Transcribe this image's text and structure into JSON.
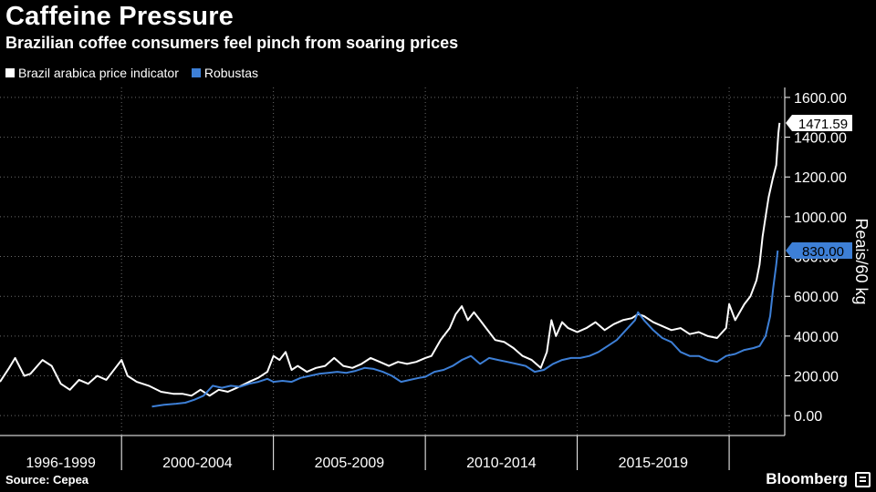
{
  "header": {
    "title": "Caffeine Pressure",
    "subtitle": "Brazilian coffee consumers feel pinch from soaring prices"
  },
  "footer": {
    "source": "Source: Cepea",
    "brand": "Bloomberg",
    "brand_icon": "bloomberg-logo-icon"
  },
  "chart_data": {
    "type": "line",
    "xlim": [
      1996,
      2021.83
    ],
    "ylim": [
      -100,
      1650
    ],
    "ylabel": "Reais/60 kg",
    "y_ticks": [
      0,
      200,
      400,
      600,
      800,
      1000,
      1200,
      1400,
      1600
    ],
    "y_tick_labels": [
      "0.00",
      "200.00",
      "400.00",
      "600.00",
      "800.00",
      "1000.00",
      "1200.00",
      "1400.00",
      "1600.00"
    ],
    "x_groups": [
      {
        "label": "1996-1999",
        "start": 1996,
        "end": 2000
      },
      {
        "label": "2000-2004",
        "start": 2000,
        "end": 2005
      },
      {
        "label": "2005-2009",
        "start": 2005,
        "end": 2010
      },
      {
        "label": "2010-2014",
        "start": 2010,
        "end": 2015
      },
      {
        "label": "2015-2019",
        "start": 2015,
        "end": 2020
      },
      {
        "label": "",
        "start": 2020,
        "end": 2021.83
      }
    ],
    "grid": true,
    "series": [
      {
        "name": "Brazil arabica price indicator",
        "color": "#ffffff",
        "last_label": "1471.59",
        "points": [
          [
            1996.0,
            170
          ],
          [
            1996.3,
            240
          ],
          [
            1996.5,
            290
          ],
          [
            1996.8,
            200
          ],
          [
            1997.0,
            210
          ],
          [
            1997.4,
            280
          ],
          [
            1997.7,
            250
          ],
          [
            1998.0,
            160
          ],
          [
            1998.3,
            130
          ],
          [
            1998.6,
            180
          ],
          [
            1998.9,
            160
          ],
          [
            1999.2,
            200
          ],
          [
            1999.5,
            180
          ],
          [
            1999.8,
            240
          ],
          [
            2000.0,
            280
          ],
          [
            2000.2,
            200
          ],
          [
            2000.5,
            170
          ],
          [
            2000.9,
            150
          ],
          [
            2001.3,
            120
          ],
          [
            2001.7,
            110
          ],
          [
            2002.0,
            110
          ],
          [
            2002.3,
            100
          ],
          [
            2002.6,
            130
          ],
          [
            2002.9,
            100
          ],
          [
            2003.2,
            130
          ],
          [
            2003.5,
            120
          ],
          [
            2003.8,
            140
          ],
          [
            2004.2,
            170
          ],
          [
            2004.5,
            190
          ],
          [
            2004.8,
            220
          ],
          [
            2005.0,
            300
          ],
          [
            2005.2,
            280
          ],
          [
            2005.4,
            320
          ],
          [
            2005.6,
            230
          ],
          [
            2005.8,
            250
          ],
          [
            2006.1,
            220
          ],
          [
            2006.4,
            240
          ],
          [
            2006.7,
            250
          ],
          [
            2007.0,
            290
          ],
          [
            2007.3,
            250
          ],
          [
            2007.6,
            240
          ],
          [
            2007.9,
            260
          ],
          [
            2008.2,
            290
          ],
          [
            2008.5,
            270
          ],
          [
            2008.8,
            250
          ],
          [
            2009.1,
            270
          ],
          [
            2009.4,
            260
          ],
          [
            2009.7,
            270
          ],
          [
            2010.0,
            290
          ],
          [
            2010.2,
            300
          ],
          [
            2010.5,
            380
          ],
          [
            2010.8,
            440
          ],
          [
            2011.0,
            510
          ],
          [
            2011.2,
            550
          ],
          [
            2011.4,
            480
          ],
          [
            2011.6,
            520
          ],
          [
            2011.8,
            480
          ],
          [
            2012.0,
            440
          ],
          [
            2012.3,
            380
          ],
          [
            2012.6,
            370
          ],
          [
            2012.9,
            340
          ],
          [
            2013.2,
            300
          ],
          [
            2013.5,
            280
          ],
          [
            2013.8,
            240
          ],
          [
            2014.0,
            320
          ],
          [
            2014.15,
            480
          ],
          [
            2014.3,
            400
          ],
          [
            2014.5,
            470
          ],
          [
            2014.7,
            440
          ],
          [
            2015.0,
            420
          ],
          [
            2015.3,
            440
          ],
          [
            2015.6,
            470
          ],
          [
            2015.9,
            430
          ],
          [
            2016.2,
            460
          ],
          [
            2016.5,
            480
          ],
          [
            2016.8,
            490
          ],
          [
            2017.0,
            510
          ],
          [
            2017.2,
            500
          ],
          [
            2017.5,
            470
          ],
          [
            2017.8,
            450
          ],
          [
            2018.1,
            430
          ],
          [
            2018.4,
            440
          ],
          [
            2018.7,
            410
          ],
          [
            2019.0,
            420
          ],
          [
            2019.3,
            400
          ],
          [
            2019.6,
            390
          ],
          [
            2019.9,
            440
          ],
          [
            2020.0,
            560
          ],
          [
            2020.2,
            480
          ],
          [
            2020.5,
            560
          ],
          [
            2020.7,
            600
          ],
          [
            2020.9,
            680
          ],
          [
            2021.0,
            760
          ],
          [
            2021.1,
            900
          ],
          [
            2021.2,
            1000
          ],
          [
            2021.3,
            1100
          ],
          [
            2021.45,
            1200
          ],
          [
            2021.55,
            1260
          ],
          [
            2021.62,
            1420
          ],
          [
            2021.66,
            1471.59
          ]
        ]
      },
      {
        "name": "Robustas",
        "color": "#3d7fd6",
        "last_label": "830.00",
        "points": [
          [
            2001.0,
            45
          ],
          [
            2001.4,
            55
          ],
          [
            2001.8,
            60
          ],
          [
            2002.1,
            65
          ],
          [
            2002.4,
            80
          ],
          [
            2002.7,
            100
          ],
          [
            2003.0,
            150
          ],
          [
            2003.3,
            140
          ],
          [
            2003.6,
            150
          ],
          [
            2003.9,
            145
          ],
          [
            2004.2,
            160
          ],
          [
            2004.5,
            170
          ],
          [
            2004.8,
            185
          ],
          [
            2005.0,
            170
          ],
          [
            2005.3,
            175
          ],
          [
            2005.6,
            170
          ],
          [
            2005.9,
            190
          ],
          [
            2006.2,
            200
          ],
          [
            2006.5,
            210
          ],
          [
            2006.8,
            215
          ],
          [
            2007.1,
            220
          ],
          [
            2007.4,
            215
          ],
          [
            2007.7,
            225
          ],
          [
            2008.0,
            240
          ],
          [
            2008.3,
            235
          ],
          [
            2008.6,
            220
          ],
          [
            2008.9,
            200
          ],
          [
            2009.2,
            170
          ],
          [
            2009.5,
            180
          ],
          [
            2009.8,
            190
          ],
          [
            2010.0,
            195
          ],
          [
            2010.3,
            220
          ],
          [
            2010.6,
            230
          ],
          [
            2010.9,
            250
          ],
          [
            2011.2,
            280
          ],
          [
            2011.5,
            300
          ],
          [
            2011.8,
            260
          ],
          [
            2012.1,
            290
          ],
          [
            2012.4,
            280
          ],
          [
            2012.7,
            270
          ],
          [
            2013.0,
            260
          ],
          [
            2013.3,
            250
          ],
          [
            2013.6,
            220
          ],
          [
            2013.9,
            230
          ],
          [
            2014.2,
            260
          ],
          [
            2014.5,
            280
          ],
          [
            2014.8,
            290
          ],
          [
            2015.1,
            290
          ],
          [
            2015.4,
            300
          ],
          [
            2015.7,
            320
          ],
          [
            2016.0,
            350
          ],
          [
            2016.3,
            380
          ],
          [
            2016.6,
            430
          ],
          [
            2016.9,
            480
          ],
          [
            2017.0,
            520
          ],
          [
            2017.2,
            480
          ],
          [
            2017.5,
            430
          ],
          [
            2017.8,
            390
          ],
          [
            2018.1,
            370
          ],
          [
            2018.4,
            320
          ],
          [
            2018.7,
            300
          ],
          [
            2019.0,
            300
          ],
          [
            2019.3,
            280
          ],
          [
            2019.6,
            270
          ],
          [
            2019.9,
            300
          ],
          [
            2020.2,
            310
          ],
          [
            2020.5,
            330
          ],
          [
            2020.8,
            340
          ],
          [
            2021.0,
            350
          ],
          [
            2021.2,
            400
          ],
          [
            2021.35,
            500
          ],
          [
            2021.45,
            640
          ],
          [
            2021.55,
            760
          ],
          [
            2021.6,
            830
          ]
        ]
      }
    ]
  }
}
